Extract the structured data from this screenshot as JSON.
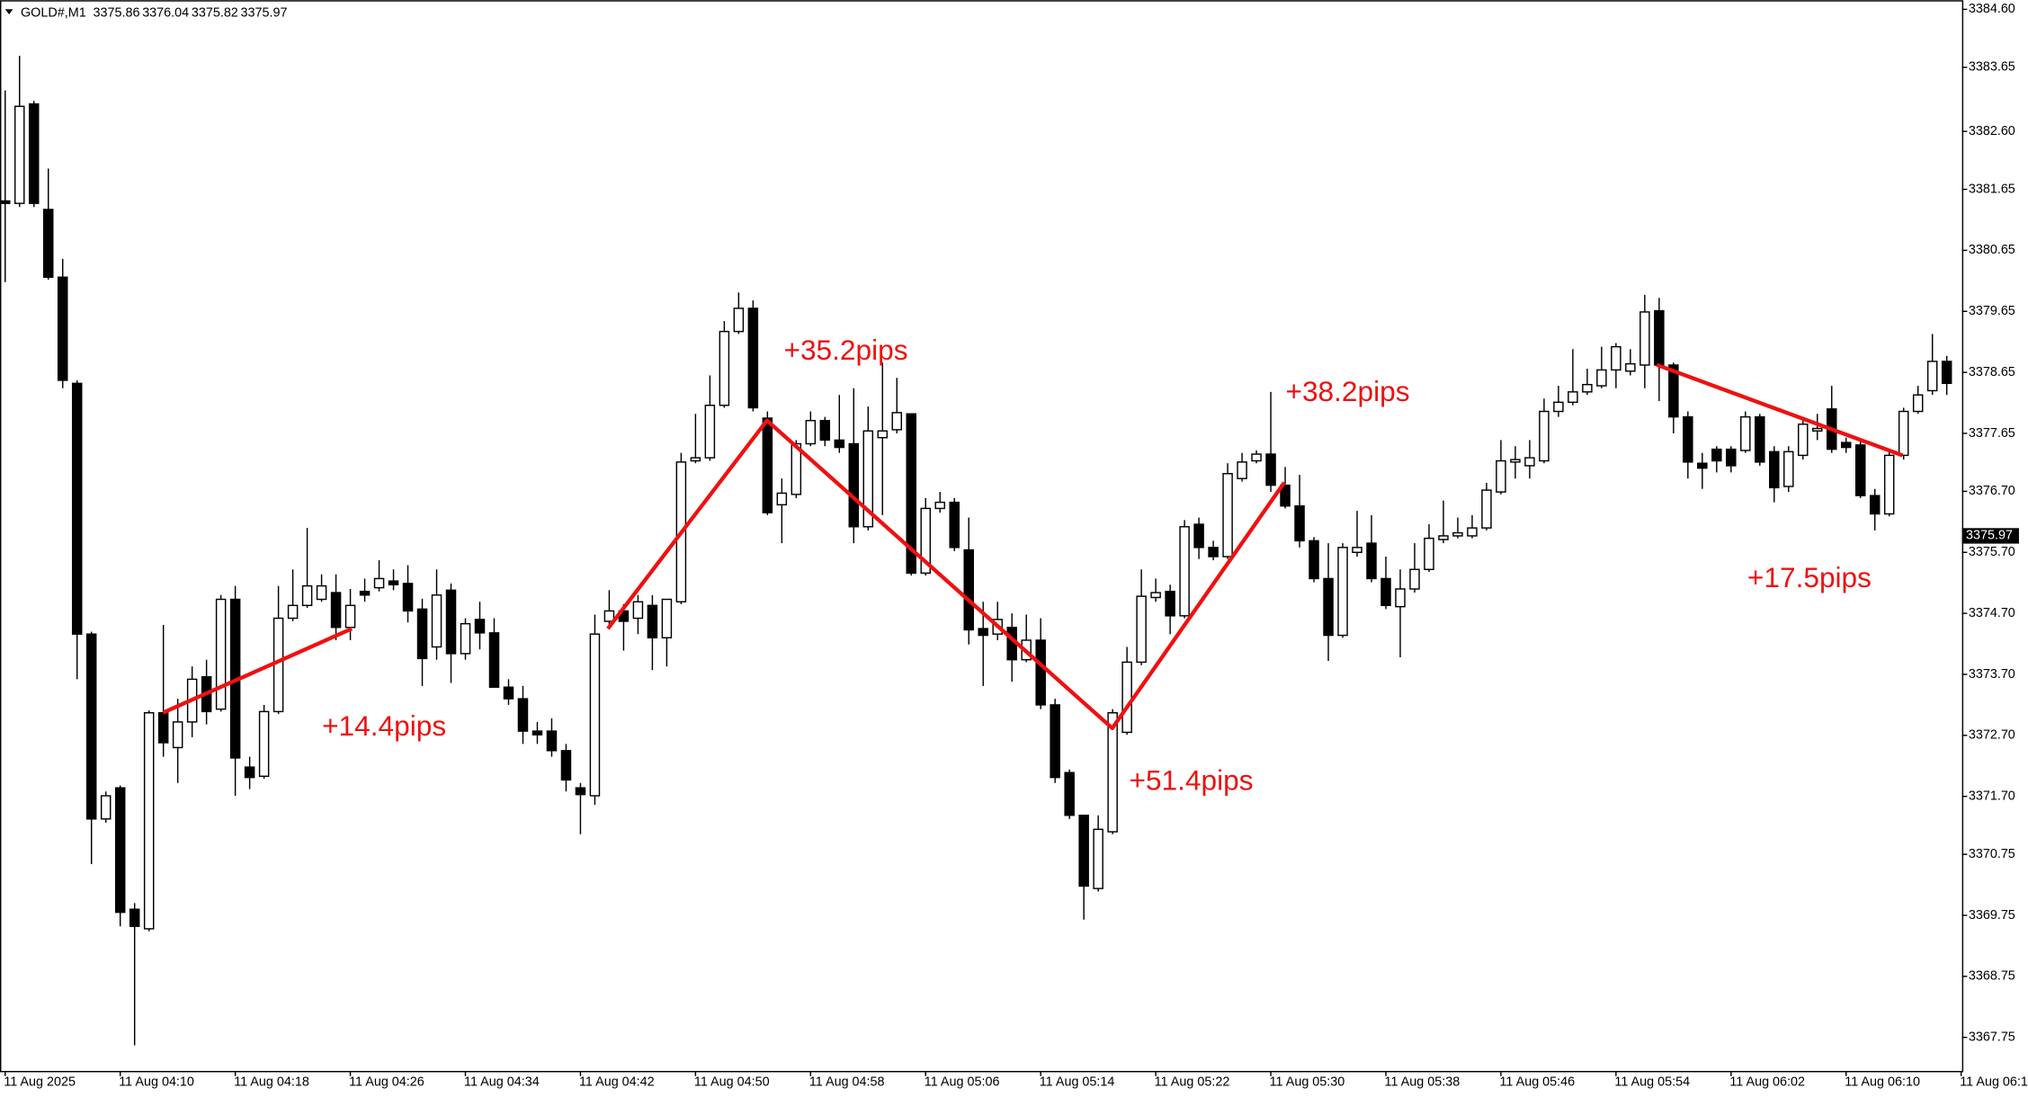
{
  "chart_data": {
    "type": "candlestick",
    "symbol": "GOLD#,M1",
    "quote": [
      3375.86,
      3376.04,
      3375.82,
      3375.97
    ],
    "last_price": 3375.97,
    "annotations": [
      "+14.4pips",
      "+35.2pips",
      "+38.2pips",
      "+51.4pips",
      "+17.5pips"
    ],
    "categories": [
      "11 Aug 2025",
      null,
      null,
      null,
      null,
      null,
      null,
      null,
      "11 Aug 04:10",
      null,
      null,
      null,
      null,
      null,
      null,
      null,
      "11 Aug 04:18",
      null,
      null,
      null,
      null,
      null,
      null,
      null,
      "11 Aug 04:26",
      null,
      null,
      null,
      null,
      null,
      null,
      null,
      "11 Aug 04:34",
      null,
      null,
      null,
      null,
      null,
      null,
      null,
      "11 Aug 04:42",
      null,
      null,
      null,
      null,
      null,
      null,
      null,
      "11 Aug 04:50",
      null,
      null,
      null,
      null,
      null,
      null,
      null,
      "11 Aug 04:58",
      null,
      null,
      null,
      null,
      null,
      null,
      null,
      "11 Aug 05:06",
      null,
      null,
      null,
      null,
      null,
      null,
      null,
      "11 Aug 05:14",
      null,
      null,
      null,
      null,
      null,
      null,
      null,
      "11 Aug 05:22",
      null,
      null,
      null,
      null,
      null,
      null,
      null,
      "11 Aug 05:30",
      null,
      null,
      null,
      null,
      null,
      null,
      null,
      "11 Aug 05:38",
      null,
      null,
      null,
      null,
      null,
      null,
      null,
      "11 Aug 05:46",
      null,
      null,
      null,
      null,
      null,
      null,
      null,
      "11 Aug 05:54",
      null,
      null,
      null,
      null,
      null,
      null,
      null,
      "11 Aug 06:02",
      null,
      null,
      null,
      null,
      null,
      null,
      null,
      "11 Aug 06:10",
      null,
      null,
      null,
      null,
      null,
      null,
      null,
      "11 Aug 06:1"
    ],
    "open": [
      3381.46,
      3381.42,
      3383.05,
      3381.32,
      3380.21,
      3378.47,
      3374.36,
      3371.33,
      3371.84,
      3369.85,
      3369.53,
      3373.07,
      3372.5,
      3372.92,
      3373.66,
      3373.13,
      3374.93,
      3372.18,
      3372.03,
      3373.09,
      3374.62,
      3374.83,
      3374.93,
      3375.04,
      3374.47,
      3375.06,
      3375.12,
      3375.23,
      3375.19,
      3374.77,
      3374.15,
      3375.08,
      3374.04,
      3374.6,
      3374.38,
      3373.49,
      3373.3,
      3372.77,
      3372.77,
      3372.45,
      3371.84,
      3371.71,
      3374.57,
      3374.74,
      3374.62,
      3374.83,
      3374.3,
      3374.89,
      3377.2,
      3377.25,
      3378.11,
      3379.32,
      3379.7,
      3377.9,
      3376.48,
      3376.65,
      3377.48,
      3377.86,
      3377.54,
      3377.48,
      3376.12,
      3377.58,
      3377.71,
      3377.97,
      3375.36,
      3376.42,
      3376.52,
      3375.74,
      3374.45,
      3374.36,
      3374.47,
      3373.94,
      3374.26,
      3373.2,
      3372.09,
      3371.39,
      3370.19,
      3371.12,
      3372.75,
      3373.9,
      3374.96,
      3375.06,
      3374.66,
      3376.16,
      3375.78,
      3375.63,
      3376.91,
      3377.2,
      3377.31,
      3376.8,
      3376.46,
      3375.89,
      3375.27,
      3374.34,
      3375.7,
      3375.85,
      3375.27,
      3374.81,
      3375.1,
      3375.42,
      3375.91,
      3375.97,
      3375.97,
      3376.1,
      3376.69,
      3377.18,
      3377.12,
      3377.2,
      3378.01,
      3378.16,
      3378.33,
      3378.43,
      3378.69,
      3378.67,
      3378.77,
      3379.66,
      3378.77,
      3377.92,
      3377.16,
      3377.39,
      3377.39,
      3377.37,
      3377.92,
      3377.35,
      3376.78,
      3377.29,
      3377.69,
      3378.05,
      3377.5,
      3377.46,
      3376.63,
      3376.33,
      3377.29,
      3378.01,
      3378.35,
      3378.83,
      null
    ],
    "high": [
      3383.27,
      3383.84,
      3383.1,
      3381.99,
      3380.51,
      3378.52,
      3374.4,
      3371.78,
      3371.88,
      3369.95,
      3373.11,
      3374.51,
      3373.3,
      3373.83,
      3373.94,
      3375.0,
      3375.15,
      3372.35,
      3373.2,
      3375.15,
      3375.42,
      3376.1,
      3375.34,
      3375.34,
      3375.1,
      3375.27,
      3375.57,
      3375.42,
      3375.49,
      3374.94,
      3375.42,
      3375.19,
      3374.62,
      3374.89,
      3374.62,
      3373.62,
      3373.51,
      3372.92,
      3372.98,
      3372.56,
      3371.92,
      3374.68,
      3375.08,
      3374.85,
      3375.0,
      3375.0,
      3374.93,
      3377.33,
      3377.97,
      3378.6,
      3379.49,
      3379.96,
      3379.83,
      3378.01,
      3376.91,
      3377.54,
      3378.01,
      3377.92,
      3378.28,
      3378.39,
      3378.09,
      3378.81,
      3378.56,
      3377.97,
      3376.59,
      3376.69,
      3376.59,
      3376.27,
      3374.89,
      3374.89,
      3374.7,
      3374.68,
      3374.62,
      3373.3,
      3372.14,
      3371.39,
      3371.39,
      3373.13,
      3374.15,
      3375.42,
      3375.27,
      3375.17,
      3376.23,
      3376.27,
      3375.89,
      3377.16,
      3377.33,
      3377.37,
      3378.33,
      3377.1,
      3376.97,
      3375.95,
      3375.85,
      3375.85,
      3376.38,
      3376.31,
      3375.63,
      3375.42,
      3375.85,
      3376.16,
      3376.55,
      3376.27,
      3376.31,
      3376.84,
      3377.54,
      3377.44,
      3377.54,
      3378.22,
      3378.43,
      3379.03,
      3378.71,
      3379.07,
      3379.13,
      3379.03,
      3379.92,
      3379.87,
      3378.81,
      3378.01,
      3377.33,
      3377.44,
      3377.44,
      3378.01,
      3377.97,
      3377.44,
      3377.44,
      3377.86,
      3377.97,
      3378.43,
      3377.58,
      3377.54,
      3376.74,
      3377.37,
      3378.07,
      3378.43,
      3379.28,
      3378.92,
      null
    ],
    "low": [
      3380.13,
      3381.36,
      3381.36,
      3380.17,
      3378.39,
      3373.62,
      3370.59,
      3371.27,
      3369.57,
      3367.62,
      3369.49,
      3372.35,
      3371.92,
      3372.67,
      3372.88,
      3373.09,
      3371.71,
      3371.82,
      3371.99,
      3373.05,
      3374.57,
      3374.79,
      3374.89,
      3374.26,
      3374.26,
      3374.89,
      3375.06,
      3375.08,
      3374.55,
      3373.51,
      3373.94,
      3373.56,
      3373.94,
      3374.11,
      3373.49,
      3373.2,
      3372.56,
      3372.56,
      3372.35,
      3371.78,
      3371.08,
      3371.56,
      3374.47,
      3374.09,
      3374.36,
      3373.77,
      3373.83,
      3374.85,
      3377.16,
      3377.2,
      3378.07,
      3379.28,
      3378.01,
      3376.31,
      3375.85,
      3376.59,
      3377.44,
      3377.44,
      3377.33,
      3375.85,
      3376.06,
      3376.31,
      3377.65,
      3375.32,
      3375.32,
      3376.35,
      3375.72,
      3374.19,
      3373.51,
      3374.26,
      3373.58,
      3373.9,
      3373.13,
      3371.92,
      3371.33,
      3369.68,
      3370.14,
      3371.08,
      3372.71,
      3373.85,
      3374.89,
      3374.36,
      3374.62,
      3375.59,
      3375.57,
      3375.59,
      3376.86,
      3377.16,
      3376.69,
      3376.42,
      3375.78,
      3375.21,
      3373.92,
      3374.3,
      3375.63,
      3375.21,
      3374.77,
      3373.98,
      3375.04,
      3375.38,
      3375.85,
      3375.93,
      3375.93,
      3376.06,
      3376.65,
      3376.91,
      3376.91,
      3377.16,
      3377.92,
      3378.11,
      3378.28,
      3378.39,
      3378.39,
      3378.6,
      3378.39,
      3378.18,
      3377.65,
      3376.91,
      3376.74,
      3377.01,
      3377.01,
      3377.33,
      3377.12,
      3376.52,
      3376.69,
      3377.22,
      3377.54,
      3377.33,
      3377.33,
      3376.59,
      3376.06,
      3376.29,
      3377.22,
      3377.97,
      3378.28,
      3378.28,
      null
    ],
    "close": [
      3381.42,
      3383.01,
      3381.42,
      3380.21,
      3378.52,
      3374.36,
      3371.33,
      3371.71,
      3369.8,
      3369.57,
      3373.07,
      3372.58,
      3372.92,
      3373.62,
      3373.09,
      3374.93,
      3372.33,
      3372.01,
      3373.09,
      3374.62,
      3374.83,
      3375.15,
      3375.15,
      3374.47,
      3374.83,
      3375.0,
      3375.27,
      3375.17,
      3374.74,
      3373.96,
      3375.0,
      3374.04,
      3374.53,
      3374.38,
      3373.49,
      3373.3,
      3372.77,
      3372.71,
      3372.45,
      3371.97,
      3371.73,
      3374.36,
      3374.74,
      3374.57,
      3374.89,
      3374.3,
      3374.93,
      3377.18,
      3377.25,
      3378.11,
      3379.32,
      3379.7,
      3378.07,
      3376.35,
      3376.67,
      3377.48,
      3377.86,
      3377.54,
      3377.42,
      3376.12,
      3377.69,
      3377.69,
      3377.99,
      3375.36,
      3376.42,
      3376.52,
      3375.78,
      3374.43,
      3374.34,
      3374.6,
      3373.94,
      3374.26,
      3373.2,
      3372.01,
      3371.39,
      3370.23,
      3371.16,
      3373.07,
      3373.9,
      3374.98,
      3375.04,
      3374.66,
      3376.12,
      3375.78,
      3375.63,
      3376.99,
      3377.18,
      3377.31,
      3376.8,
      3376.46,
      3375.89,
      3375.27,
      3374.34,
      3375.78,
      3375.78,
      3375.27,
      3374.83,
      3375.1,
      3375.42,
      3375.93,
      3375.97,
      3376.02,
      3376.1,
      3376.72,
      3377.2,
      3377.22,
      3377.25,
      3378.01,
      3378.16,
      3378.33,
      3378.45,
      3378.69,
      3379.07,
      3378.79,
      3379.64,
      3378.77,
      3377.92,
      3377.18,
      3377.08,
      3377.2,
      3377.12,
      3377.92,
      3377.18,
      3376.76,
      3377.35,
      3377.8,
      3377.73,
      3377.39,
      3377.42,
      3376.63,
      3376.33,
      3377.29,
      3378.01,
      3378.28,
      3378.83,
      3378.47,
      null
    ],
    "ylim": [
      3367.2,
      3384.75
    ],
    "yticks": [
      {
        "value": 3384.6,
        "label": "3384.60"
      },
      3383.65,
      {
        "value": 3382.6,
        "label": "3382.60"
      },
      3381.65,
      3380.65,
      3379.65,
      3378.65,
      3377.65,
      {
        "value": 3376.7,
        "label": "3376.70"
      },
      {
        "value": 3375.7,
        "label": "3375.70"
      },
      {
        "value": 3374.7,
        "label": "3374.70"
      },
      {
        "value": 3373.7,
        "label": "3373.70"
      },
      {
        "value": 3372.7,
        "label": "3372.70"
      },
      {
        "value": 3371.7,
        "label": "3371.70"
      },
      3370.75,
      3369.75,
      3368.75,
      3367.75
    ],
    "up_color": "#ffffff",
    "down_color": "#000000",
    "annotation_color": "#ee1111",
    "grid": false
  }
}
